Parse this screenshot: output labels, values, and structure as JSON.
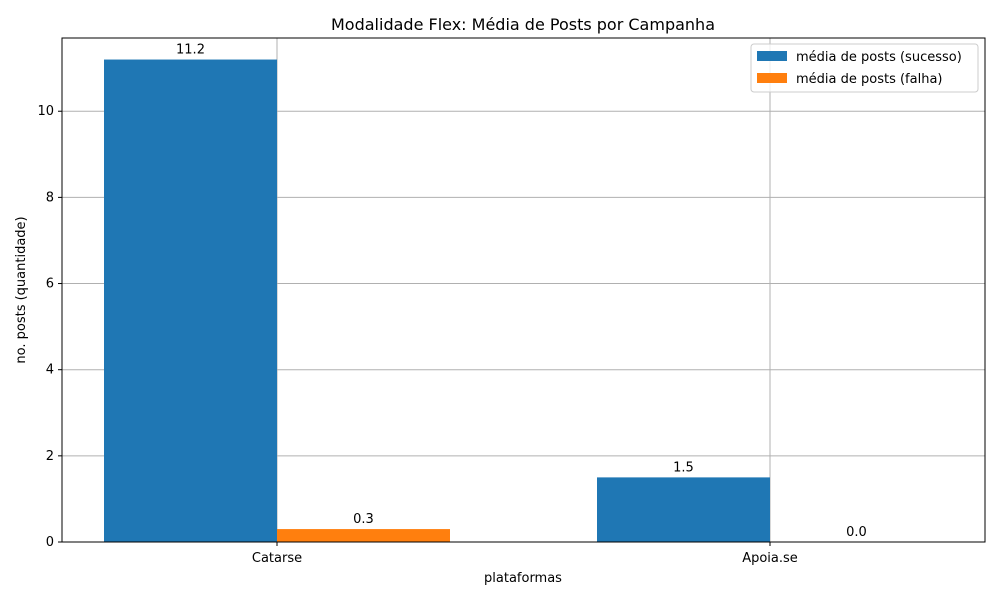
{
  "chart_data": {
    "type": "bar",
    "title": "Modalidade Flex: Média de Posts por Campanha",
    "xlabel": "plataformas",
    "ylabel": "no. posts (quantidade)",
    "categories": [
      "Catarse",
      "Apoia.se"
    ],
    "series": [
      {
        "name": "média de posts (sucesso)",
        "values": [
          11.2,
          1.5
        ],
        "labels": [
          "11.2",
          "1.5"
        ],
        "color": "#1f77b4"
      },
      {
        "name": "média de posts (falha)",
        "values": [
          0.3,
          0.0
        ],
        "labels": [
          "0.3",
          "0.0"
        ],
        "color": "#ff7f0e"
      }
    ],
    "ylim": [
      0,
      11.7
    ],
    "yticks": [
      0,
      2,
      4,
      6,
      8,
      10
    ],
    "grid": true,
    "legend_position": "top-right"
  }
}
